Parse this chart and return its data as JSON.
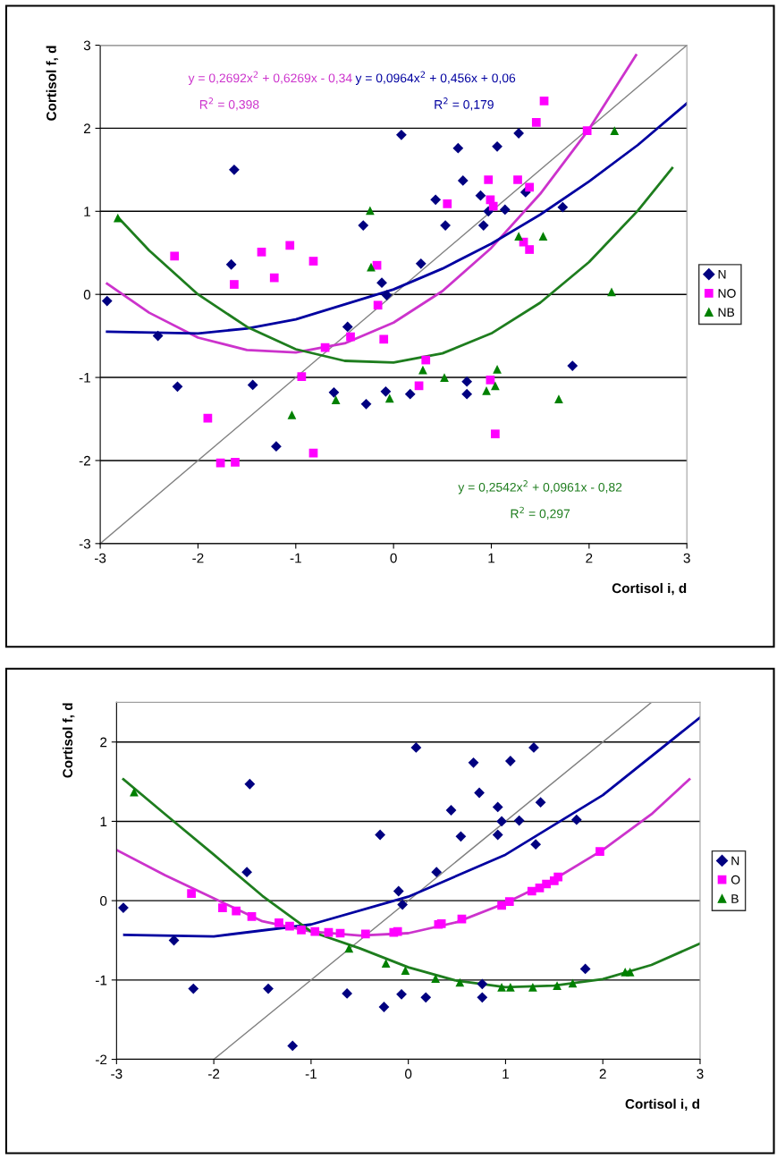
{
  "chart_data": [
    {
      "type": "scatter",
      "xlabel": "Cortisol i, d",
      "ylabel": "Cortisol f, d",
      "xlim": [
        -3,
        3
      ],
      "ylim": [
        -3,
        3
      ],
      "xticks": [
        -3,
        -2,
        -1,
        0,
        1,
        2,
        3
      ],
      "yticks": [
        -3,
        -2,
        -1,
        0,
        1,
        2,
        3
      ],
      "grid": "y",
      "legend": "right",
      "annotations": [
        "y = 0,2692x$^{2}$ + 0,6269x - 0,34",
        "R$^{2}$ = 0,398",
        "y = 0,0964x$^{2}$ + 0,456x + 0,06",
        "R$^{2}$ = 0,179",
        "y = 0,2542x$^{2}$ + 0,0961x - 0,82",
        "R$^{2}$ = 0,297"
      ],
      "series": [
        {
          "type": "line",
          "color": "#808080",
          "marker": "none",
          "x": [
            -3,
            3
          ],
          "values": [
            -3,
            3
          ]
        },
        {
          "name": "N",
          "type": "scatter",
          "color": "#000080",
          "marker": "diamond",
          "x": [
            -2.93,
            -2.41,
            -2.21,
            -1.63,
            -1.66,
            -1.44,
            -1.2,
            -0.61,
            -0.47,
            -0.31,
            0.08,
            -0.12,
            -0.07,
            -0.28,
            -0.08,
            0.17,
            0.28,
            0.43,
            0.53,
            0.66,
            0.71,
            0.75,
            0.75,
            0.89,
            0.92,
            0.97,
            1.06,
            1.14,
            1.28,
            1.35,
            1.73,
            1.83
          ],
          "values": [
            -0.08,
            -0.5,
            -1.11,
            1.5,
            0.36,
            -1.09,
            -1.83,
            -1.18,
            -0.39,
            0.83,
            1.92,
            0.14,
            -0.01,
            -1.32,
            -1.17,
            -1.2,
            0.37,
            1.14,
            0.83,
            1.76,
            1.37,
            -1.05,
            -1.2,
            1.19,
            0.83,
            1.0,
            1.78,
            1.02,
            1.94,
            1.23,
            1.05,
            -0.86
          ]
        },
        {
          "name": "NO",
          "type": "scatter",
          "color": "#ff00ff",
          "marker": "square",
          "x": [
            -2.24,
            -1.63,
            -1.9,
            -1.77,
            -1.62,
            -1.35,
            -1.22,
            -1.06,
            -0.82,
            -0.94,
            -0.82,
            -0.7,
            -0.44,
            -0.17,
            -0.16,
            -0.1,
            0.33,
            0.26,
            0.55,
            0.97,
            0.99,
            1.02,
            0.99,
            1.04,
            1.27,
            1.39,
            1.33,
            1.39,
            1.46,
            1.54,
            1.98
          ],
          "values": [
            0.46,
            0.12,
            -1.49,
            -2.03,
            -2.02,
            0.51,
            0.2,
            0.59,
            0.4,
            -0.99,
            -1.91,
            -0.64,
            -0.51,
            0.35,
            -0.13,
            -0.54,
            -0.79,
            -1.1,
            1.09,
            1.38,
            1.14,
            1.06,
            -1.03,
            -1.68,
            1.38,
            1.29,
            0.63,
            0.54,
            2.07,
            2.33,
            1.97
          ]
        },
        {
          "name": "NB",
          "type": "scatter",
          "color": "#008000",
          "marker": "triangle",
          "x": [
            -2.82,
            -1.04,
            -0.59,
            -0.24,
            -0.23,
            -0.04,
            0.3,
            0.52,
            0.95,
            1.04,
            1.06,
            1.28,
            1.53,
            1.69,
            2.23,
            2.26
          ],
          "values": [
            0.92,
            -1.45,
            -1.27,
            1.01,
            0.33,
            -1.25,
            -0.91,
            -1.0,
            -1.16,
            -1.1,
            -0.9,
            0.7,
            0.7,
            -1.26,
            0.03,
            1.97
          ]
        },
        {
          "type": "line",
          "color": "#cc33cc",
          "marker": "none",
          "x": [
            -2.93,
            -2.5,
            -2,
            -1.5,
            -1,
            -0.5,
            0,
            0.5,
            1,
            1.5,
            2,
            2.48
          ],
          "values": [
            0.13,
            -0.22,
            -0.52,
            -0.67,
            -0.7,
            -0.59,
            -0.34,
            0.04,
            0.56,
            1.21,
            1.99,
            2.88
          ]
        },
        {
          "type": "line",
          "color": "#0000a0",
          "marker": "none",
          "x": [
            -2.93,
            -2,
            -1.5,
            -1,
            0,
            0.5,
            1,
            1.5,
            2,
            2.5,
            3
          ],
          "values": [
            -0.45,
            -0.47,
            -0.41,
            -0.3,
            0.06,
            0.31,
            0.61,
            0.96,
            1.36,
            1.8,
            2.3
          ]
        },
        {
          "type": "line",
          "color": "#1e7d1e",
          "marker": "none",
          "x": [
            -2.82,
            -2.5,
            -2,
            -1.5,
            -1,
            -0.5,
            0,
            0.5,
            1,
            1.5,
            2,
            2.5,
            2.85
          ],
          "values": [
            0.93,
            0.53,
            0.0,
            -0.39,
            -0.66,
            -0.8,
            -0.82,
            -0.71,
            -0.47,
            -0.1,
            0.39,
            1.01,
            1.52
          ]
        }
      ]
    },
    {
      "type": "scatter",
      "xlabel": "Cortisol i, d",
      "ylabel": "Cortisol f, d",
      "xlim": [
        -3,
        3
      ],
      "ylim": [
        -2,
        2.5
      ],
      "xticks": [
        -3,
        -2,
        -1,
        0,
        1,
        2,
        3
      ],
      "yticks": [
        -2,
        -1,
        0,
        1,
        2
      ],
      "grid": "y",
      "legend": "right",
      "series": [
        {
          "type": "line",
          "color": "#808080",
          "marker": "none",
          "x": [
            -2,
            2.5
          ],
          "values": [
            -2,
            2.5
          ]
        },
        {
          "name": "N",
          "type": "scatter",
          "color": "#000080",
          "marker": "diamond",
          "x": [
            -2.93,
            -2.41,
            -2.21,
            -1.63,
            -1.66,
            -1.44,
            -1.19,
            -0.63,
            -0.29,
            0.08,
            -0.1,
            -0.06,
            -0.25,
            -0.07,
            0.18,
            0.29,
            0.44,
            0.54,
            0.67,
            0.73,
            0.76,
            0.76,
            0.92,
            0.92,
            0.96,
            1.05,
            1.14,
            1.29,
            1.36,
            1.31,
            1.73,
            1.82
          ],
          "values": [
            -0.09,
            -0.5,
            -1.11,
            1.47,
            0.36,
            -1.11,
            -1.83,
            -1.17,
            0.83,
            1.93,
            0.12,
            -0.05,
            -1.34,
            -1.18,
            -1.22,
            0.36,
            1.14,
            0.81,
            1.74,
            1.36,
            -1.05,
            -1.22,
            1.18,
            0.83,
            1.0,
            1.76,
            1.01,
            1.93,
            1.24,
            0.71,
            1.02,
            -0.86
          ]
        },
        {
          "name": "O",
          "type": "scatter",
          "color": "#ff00ff",
          "marker": "square",
          "x": [
            -2.23,
            -1.91,
            -1.77,
            -1.61,
            -1.33,
            -1.22,
            -1.1,
            -0.96,
            -0.82,
            -0.7,
            -0.44,
            -0.15,
            -0.11,
            0.31,
            0.34,
            0.55,
            0.96,
            1.04,
            1.27,
            1.35,
            1.42,
            1.5,
            1.54,
            1.97
          ],
          "values": [
            0.09,
            -0.09,
            -0.13,
            -0.2,
            -0.28,
            -0.32,
            -0.37,
            -0.39,
            -0.4,
            -0.41,
            -0.42,
            -0.4,
            -0.39,
            -0.3,
            -0.29,
            -0.23,
            -0.06,
            -0.01,
            0.12,
            0.16,
            0.21,
            0.25,
            0.3,
            0.62
          ]
        },
        {
          "name": "B",
          "type": "scatter",
          "color": "#008000",
          "marker": "triangle",
          "x": [
            -2.82,
            -0.61,
            -0.23,
            -0.03,
            0.28,
            0.53,
            0.96,
            1.05,
            1.28,
            1.53,
            1.69,
            2.23,
            2.28
          ],
          "values": [
            1.37,
            -0.6,
            -0.79,
            -0.88,
            -0.98,
            -1.03,
            -1.09,
            -1.09,
            -1.09,
            -1.07,
            -1.04,
            -0.9,
            -0.9
          ]
        },
        {
          "type": "line",
          "color": "#0000a0",
          "marker": "none",
          "x": [
            -2.92,
            -2,
            -1,
            0,
            1,
            2,
            3
          ],
          "values": [
            -0.43,
            -0.45,
            -0.3,
            0.05,
            0.58,
            1.33,
            2.31
          ]
        },
        {
          "type": "line",
          "color": "#cc33cc",
          "marker": "none",
          "x": [
            -3,
            -2.5,
            -2,
            -1.5,
            -1,
            -0.5,
            0,
            0.5,
            1,
            1.5,
            2,
            2.5,
            2.89
          ],
          "values": [
            0.64,
            0.32,
            0.03,
            -0.26,
            -0.39,
            -0.44,
            -0.41,
            -0.27,
            -0.03,
            0.27,
            0.64,
            1.09,
            1.53
          ]
        },
        {
          "type": "line",
          "color": "#1e7d1e",
          "marker": "none",
          "x": [
            -2.93,
            -2.5,
            -2,
            -1.5,
            -1,
            -0.5,
            0,
            0.5,
            1,
            1.5,
            2,
            2.5,
            3
          ],
          "values": [
            1.53,
            1.09,
            0.58,
            0.06,
            -0.39,
            -0.6,
            -0.84,
            -1.01,
            -1.09,
            -1.07,
            -0.99,
            -0.81,
            -0.54
          ]
        }
      ]
    }
  ]
}
